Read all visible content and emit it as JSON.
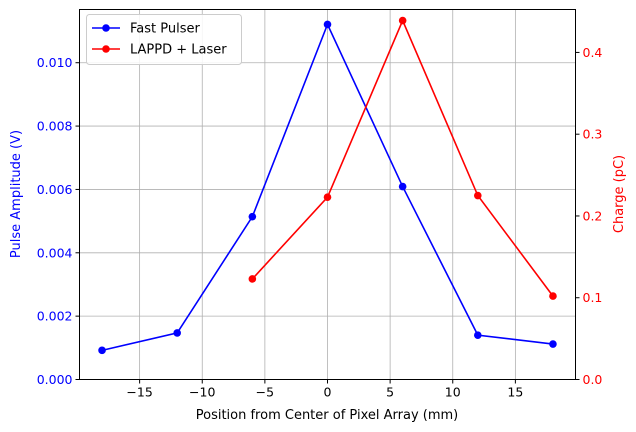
{
  "chart_data": {
    "type": "line",
    "xlabel": "Position from Center of Pixel Array (mm)",
    "xlim": [
      -19.8,
      19.8
    ],
    "xticks": [
      -15,
      -10,
      -5,
      0,
      5,
      10,
      15
    ],
    "xtick_labels": [
      "−15",
      "−10",
      "−5",
      "0",
      "5",
      "10",
      "15"
    ],
    "grid": true,
    "legend_position": "top-left",
    "left_axis": {
      "label": "Pulse Amplitude (V)",
      "color": "#0000ff",
      "ylim": [
        0.0,
        0.01168
      ],
      "ticks": [
        0.0,
        0.002,
        0.004,
        0.006,
        0.008,
        0.01
      ],
      "tick_labels": [
        "0.000",
        "0.002",
        "0.004",
        "0.006",
        "0.008",
        "0.010"
      ]
    },
    "right_axis": {
      "label": "Charge (pC)",
      "color": "#ff0000",
      "ylim": [
        0.0,
        0.4525
      ],
      "ticks": [
        0.0,
        0.1,
        0.2,
        0.3,
        0.4
      ],
      "tick_labels": [
        "0.0",
        "0.1",
        "0.2",
        "0.3",
        "0.4"
      ]
    },
    "series": [
      {
        "name": "Fast Pulser",
        "axis": "left",
        "color": "#0000ff",
        "x": [
          -18,
          -12,
          -6,
          0,
          6,
          12,
          18
        ],
        "y": [
          0.00092,
          0.00147,
          0.00514,
          0.01121,
          0.00609,
          0.0014,
          0.00112
        ]
      },
      {
        "name": "LAPPD + Laser",
        "axis": "right",
        "color": "#ff0000",
        "x": [
          -6,
          0,
          6,
          12,
          18
        ],
        "y": [
          0.123,
          0.223,
          0.439,
          0.225,
          0.102
        ]
      }
    ]
  }
}
